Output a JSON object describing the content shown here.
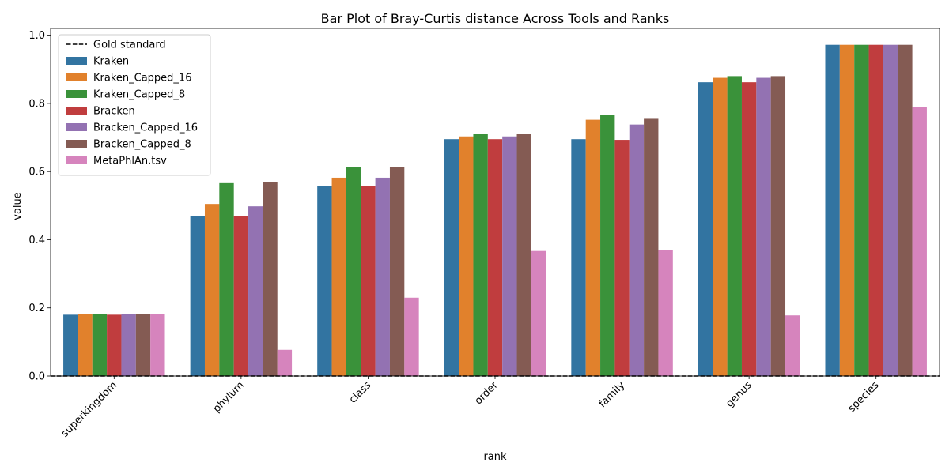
{
  "chart_data": {
    "type": "bar",
    "title": "Bar Plot of Bray-Curtis distance Across Tools and Ranks",
    "xlabel": "rank",
    "ylabel": "value",
    "ylim": [
      0,
      1.02
    ],
    "yticks": [
      0.0,
      0.2,
      0.4,
      0.6,
      0.8,
      1.0
    ],
    "ytick_labels": [
      "0.0",
      "0.2",
      "0.4",
      "0.6",
      "0.8",
      "1.0"
    ],
    "categories": [
      "superkingdom",
      "phylum",
      "class",
      "order",
      "family",
      "genus",
      "species"
    ],
    "legend_position": "top-left",
    "grid": false,
    "reference_line": {
      "label": "Gold standard",
      "value": 0.0,
      "style": "dashed",
      "color": "#000000"
    },
    "series": [
      {
        "name": "Kraken",
        "color": "#3274a1",
        "values": [
          0.18,
          0.47,
          0.558,
          0.695,
          0.695,
          0.862,
          0.972
        ]
      },
      {
        "name": "Kraken_Capped_16",
        "color": "#e1812c",
        "values": [
          0.182,
          0.505,
          0.582,
          0.703,
          0.752,
          0.875,
          0.972
        ]
      },
      {
        "name": "Kraken_Capped_8",
        "color": "#3a923a",
        "values": [
          0.182,
          0.566,
          0.612,
          0.71,
          0.766,
          0.88,
          0.972
        ]
      },
      {
        "name": "Bracken",
        "color": "#c03d3e",
        "values": [
          0.18,
          0.47,
          0.558,
          0.695,
          0.693,
          0.862,
          0.972
        ]
      },
      {
        "name": "Bracken_Capped_16",
        "color": "#9372b2",
        "values": [
          0.182,
          0.498,
          0.582,
          0.703,
          0.738,
          0.875,
          0.972
        ]
      },
      {
        "name": "Bracken_Capped_8",
        "color": "#845b53",
        "values": [
          0.182,
          0.568,
          0.614,
          0.71,
          0.757,
          0.88,
          0.972
        ]
      },
      {
        "name": "MetaPhlAn.tsv",
        "color": "#d684bd",
        "values": [
          0.182,
          0.077,
          0.23,
          0.367,
          0.37,
          0.178,
          0.79
        ]
      }
    ]
  }
}
